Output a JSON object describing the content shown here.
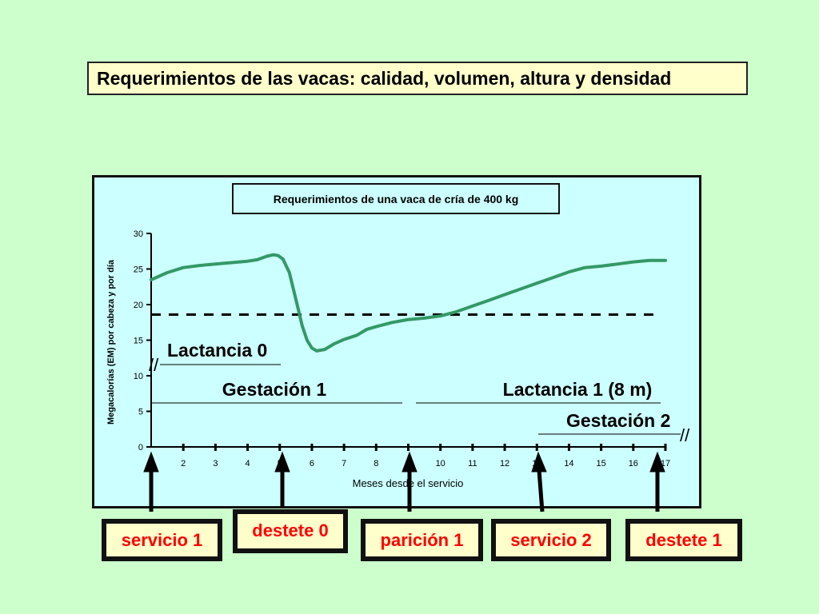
{
  "slide": {
    "title": "Requerimientos de las vacas: calidad, volumen, altura y densidad"
  },
  "chart_data": {
    "type": "line",
    "title": "Requerimientos de una vaca de cría de 400 kg",
    "xlabel": "Meses desde el servicio",
    "ylabel": "Megacalorías (EM) por cabeza y por día",
    "xlim": [
      1,
      17
    ],
    "ylim": [
      0,
      30
    ],
    "x_ticks": [
      "2",
      "3",
      "4",
      "5",
      "6",
      "7",
      "8",
      "9",
      "10",
      "11",
      "12",
      "13",
      "14",
      "15",
      "16",
      "17"
    ],
    "y_ticks": [
      "0",
      "5",
      "10",
      "15",
      "20",
      "25",
      "30"
    ],
    "series": [
      {
        "points": [
          [
            1.0,
            23.5
          ],
          [
            1.5,
            24.5
          ],
          [
            2.0,
            25.2
          ],
          [
            2.5,
            25.5
          ],
          [
            3.0,
            25.7
          ],
          [
            3.5,
            25.9
          ],
          [
            4.0,
            26.1
          ],
          [
            4.3,
            26.3
          ],
          [
            4.6,
            26.8
          ],
          [
            4.8,
            27.0
          ],
          [
            4.95,
            26.9
          ],
          [
            5.1,
            26.4
          ],
          [
            5.3,
            24.5
          ],
          [
            5.5,
            20.8
          ],
          [
            5.7,
            17.0
          ],
          [
            5.85,
            15.0
          ],
          [
            6.0,
            13.9
          ],
          [
            6.15,
            13.5
          ],
          [
            6.4,
            13.7
          ],
          [
            6.7,
            14.5
          ],
          [
            7.0,
            15.1
          ],
          [
            7.4,
            15.7
          ],
          [
            7.7,
            16.5
          ],
          [
            8.0,
            16.9
          ],
          [
            8.5,
            17.5
          ],
          [
            9.0,
            17.9
          ],
          [
            9.5,
            18.1
          ],
          [
            10.0,
            18.4
          ],
          [
            10.5,
            19.0
          ],
          [
            11.0,
            19.8
          ],
          [
            11.5,
            20.6
          ],
          [
            12.0,
            21.4
          ],
          [
            12.5,
            22.2
          ],
          [
            13.0,
            23.0
          ],
          [
            13.5,
            23.8
          ],
          [
            14.0,
            24.6
          ],
          [
            14.5,
            25.2
          ],
          [
            15.0,
            25.4
          ],
          [
            15.5,
            25.7
          ],
          [
            16.0,
            26.0
          ],
          [
            16.5,
            26.2
          ],
          [
            17.0,
            26.2
          ]
        ]
      }
    ],
    "reference_line_y": 18.6,
    "annotations": {
      "lactancia0": "Lactancia 0",
      "gestacion1": "Gestación 1",
      "lactancia1": "Lactancia 1 (8 m)",
      "gestacion2": "Gestación 2",
      "break_mark": "//"
    },
    "colors": {
      "line": "#339966",
      "reference": "#000000"
    }
  },
  "events": {
    "servicio1": "servicio 1",
    "destete0": "destete 0",
    "paricion1": "parición 1",
    "servicio2": "servicio 2",
    "destete1": "destete 1"
  }
}
